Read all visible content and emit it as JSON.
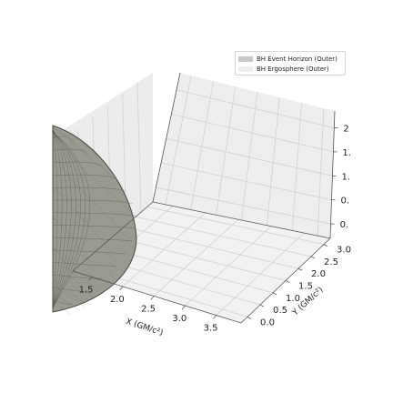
{
  "chart_data": {
    "type": "3d-surface",
    "legend": {
      "placement": "top-right",
      "entries": [
        {
          "label": "BH Event Horizon (Outer)",
          "color": "#c8c8c8"
        },
        {
          "label": "BH Ergosphere (Outer)",
          "color": "#eeeeee"
        }
      ]
    },
    "series": [
      {
        "name": "BH Event Horizon (Outer)",
        "kind": "ellipsoid",
        "face_color": "#9a9a90",
        "edge_color": "#4a4a45"
      },
      {
        "name": "BH Ergosphere (Outer)",
        "kind": "ellipsoid",
        "face_color": "#eeeeee"
      }
    ],
    "x_axis": {
      "label": "X (GM/c²)",
      "ticks": [
        "1.5",
        "2.0",
        "2.5",
        "3.0",
        "3.5"
      ],
      "range": [
        1.2,
        3.8
      ]
    },
    "y_axis": {
      "label": "Y (GM/c²)",
      "ticks": [
        "0.0",
        "0.5",
        "1.0",
        "1.5",
        "2.0",
        "2.5",
        "3.0"
      ],
      "range": [
        -0.2,
        3.2
      ]
    },
    "z_axis": {
      "label": "",
      "ticks": [
        "0.",
        "0.",
        "1.",
        "1.",
        "2"
      ],
      "range": [
        0,
        2.5
      ]
    },
    "grid": true,
    "pane_color": "#f2f2f2"
  }
}
